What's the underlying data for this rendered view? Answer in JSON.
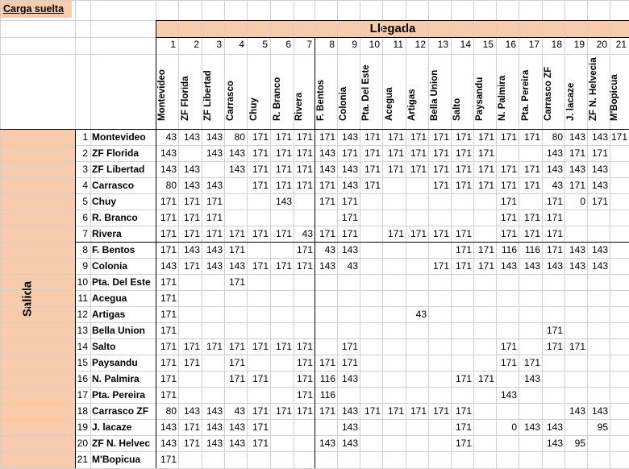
{
  "sheet_title": "Carga suelta",
  "header_llegada": "Llegada",
  "header_salida": "Salida",
  "columns": [
    {
      "num": "1",
      "name": "Montevideo"
    },
    {
      "num": "2",
      "name": "ZF Florida"
    },
    {
      "num": "3",
      "name": "ZF Libertad"
    },
    {
      "num": "4",
      "name": "Carrasco"
    },
    {
      "num": "5",
      "name": "Chuy"
    },
    {
      "num": "6",
      "name": "R. Branco"
    },
    {
      "num": "7",
      "name": "Rivera"
    },
    {
      "num": "8",
      "name": "F. Bentos"
    },
    {
      "num": "9",
      "name": "Colonia"
    },
    {
      "num": "10",
      "name": "Pta. Del Este"
    },
    {
      "num": "11",
      "name": "Acegua"
    },
    {
      "num": "12",
      "name": "Artigas"
    },
    {
      "num": "13",
      "name": "Bella Union"
    },
    {
      "num": "14",
      "name": "Salto"
    },
    {
      "num": "15",
      "name": "Paysandu"
    },
    {
      "num": "16",
      "name": "N. Palmira"
    },
    {
      "num": "17",
      "name": "Pta. Pereira"
    },
    {
      "num": "18",
      "name": "Carrasco ZF"
    },
    {
      "num": "19",
      "name": "J. lacaze"
    },
    {
      "num": "20",
      "name": "ZF N. Helvecia"
    },
    {
      "num": "21",
      "name": "M'Bopicua"
    }
  ],
  "rows": [
    {
      "num": "1",
      "name": "Montevideo",
      "values": [
        "43",
        "143",
        "143",
        "80",
        "171",
        "171",
        "171",
        "171",
        "143",
        "171",
        "171",
        "171",
        "171",
        "171",
        "171",
        "171",
        "171",
        "80",
        "143",
        "143",
        "171"
      ]
    },
    {
      "num": "2",
      "name": "ZF Florida",
      "values": [
        "143",
        "",
        "143",
        "143",
        "171",
        "171",
        "171",
        "143",
        "171",
        "171",
        "171",
        "171",
        "171",
        "171",
        "171",
        "",
        "",
        "143",
        "171",
        "171",
        ""
      ]
    },
    {
      "num": "3",
      "name": "ZF Libertad",
      "values": [
        "143",
        "143",
        "",
        "143",
        "171",
        "171",
        "171",
        "143",
        "143",
        "171",
        "171",
        "171",
        "171",
        "171",
        "171",
        "171",
        "171",
        "143",
        "143",
        "143",
        ""
      ]
    },
    {
      "num": "4",
      "name": "Carrasco",
      "values": [
        "80",
        "143",
        "143",
        "",
        "171",
        "171",
        "171",
        "171",
        "143",
        "171",
        "",
        "",
        "171",
        "171",
        "171",
        "171",
        "171",
        "43",
        "171",
        "143",
        ""
      ]
    },
    {
      "num": "5",
      "name": "Chuy",
      "values": [
        "171",
        "171",
        "171",
        "",
        "",
        "143",
        "",
        "171",
        "171",
        "",
        "",
        "",
        "",
        "",
        "",
        "171",
        "",
        "171",
        "0",
        "171",
        ""
      ]
    },
    {
      "num": "6",
      "name": "R. Branco",
      "values": [
        "171",
        "171",
        "171",
        "",
        "",
        "",
        "",
        "",
        "171",
        "",
        "",
        "",
        "",
        "",
        "",
        "171",
        "171",
        "171",
        "",
        "",
        ""
      ]
    },
    {
      "num": "7",
      "name": "Rivera",
      "values": [
        "171",
        "171",
        "171",
        "171",
        "171",
        "171",
        "43",
        "171",
        "171",
        "",
        "171",
        "171",
        "171",
        "171",
        "",
        "171",
        "171",
        "171",
        "",
        "",
        ""
      ]
    },
    {
      "num": "8",
      "name": "F. Bentos",
      "values": [
        "171",
        "143",
        "143",
        "171",
        "",
        "",
        "171",
        "43",
        "143",
        "",
        "",
        "",
        "",
        "171",
        "171",
        "116",
        "116",
        "171",
        "143",
        "143",
        ""
      ]
    },
    {
      "num": "9",
      "name": "Colonia",
      "values": [
        "143",
        "171",
        "143",
        "143",
        "171",
        "171",
        "171",
        "143",
        "43",
        "",
        "",
        "",
        "171",
        "171",
        "171",
        "143",
        "143",
        "143",
        "143",
        "143",
        ""
      ]
    },
    {
      "num": "10",
      "name": "Pta. Del Este",
      "values": [
        "171",
        "",
        "",
        "171",
        "",
        "",
        "",
        "",
        "",
        "",
        "",
        "",
        "",
        "",
        "",
        "",
        "",
        "",
        "",
        "",
        ""
      ]
    },
    {
      "num": "11",
      "name": "Acegua",
      "values": [
        "171",
        "",
        "",
        "",
        "",
        "",
        "",
        "",
        "",
        "",
        "",
        "",
        "",
        "",
        "",
        "",
        "",
        "",
        "",
        "",
        ""
      ]
    },
    {
      "num": "12",
      "name": "Artigas",
      "values": [
        "171",
        "",
        "",
        "",
        "",
        "",
        "",
        "",
        "",
        "",
        "",
        "43",
        "",
        "",
        "",
        "",
        "",
        "",
        "",
        "",
        ""
      ]
    },
    {
      "num": "13",
      "name": "Bella Union",
      "values": [
        "171",
        "",
        "",
        "",
        "",
        "",
        "",
        "",
        "",
        "",
        "",
        "",
        "",
        "",
        "",
        "",
        "",
        "171",
        "",
        "",
        ""
      ]
    },
    {
      "num": "14",
      "name": "Salto",
      "values": [
        "171",
        "171",
        "171",
        "171",
        "171",
        "171",
        "171",
        "",
        "171",
        "",
        "",
        "",
        "",
        "",
        "",
        "171",
        "",
        "171",
        "171",
        "",
        ""
      ]
    },
    {
      "num": "15",
      "name": "Paysandu",
      "values": [
        "171",
        "171",
        "",
        "171",
        "",
        "",
        "171",
        "171",
        "171",
        "",
        "",
        "",
        "",
        "",
        "",
        "171",
        "171",
        "",
        "",
        "",
        ""
      ]
    },
    {
      "num": "16",
      "name": "N. Palmira",
      "values": [
        "171",
        "",
        "",
        "171",
        "171",
        "",
        "171",
        "116",
        "143",
        "",
        "",
        "",
        "",
        "171",
        "171",
        "",
        "143",
        "",
        "",
        "",
        ""
      ]
    },
    {
      "num": "17",
      "name": "Pta. Pereira",
      "values": [
        "171",
        "",
        "",
        "",
        "",
        "",
        "171",
        "116",
        "",
        "",
        "",
        "",
        "",
        "",
        "",
        "143",
        "",
        "",
        "",
        "",
        ""
      ]
    },
    {
      "num": "18",
      "name": "Carrasco ZF",
      "values": [
        "80",
        "143",
        "143",
        "43",
        "171",
        "171",
        "171",
        "171",
        "143",
        "171",
        "171",
        "171",
        "171",
        "171",
        "",
        "",
        "",
        "",
        "143",
        "143",
        ""
      ]
    },
    {
      "num": "19",
      "name": "J. lacaze",
      "values": [
        "143",
        "171",
        "143",
        "143",
        "171",
        "",
        "",
        "",
        "143",
        "",
        "",
        "",
        "",
        "171",
        "",
        "0",
        "143",
        "143",
        "",
        "95",
        ""
      ]
    },
    {
      "num": "20",
      "name": "ZF N. Helvec",
      "values": [
        "143",
        "171",
        "143",
        "143",
        "171",
        "",
        "",
        "143",
        "143",
        "",
        "",
        "",
        "",
        "171",
        "",
        "",
        "",
        "143",
        "95",
        "",
        ""
      ]
    },
    {
      "num": "21",
      "name": "M'Bopicua",
      "values": [
        "171",
        "",
        "",
        "",
        "",
        "",
        "",
        "",
        "",
        "",
        "",
        "",
        "",
        "",
        "",
        "",
        "",
        "",
        "",
        "",
        ""
      ]
    }
  ]
}
